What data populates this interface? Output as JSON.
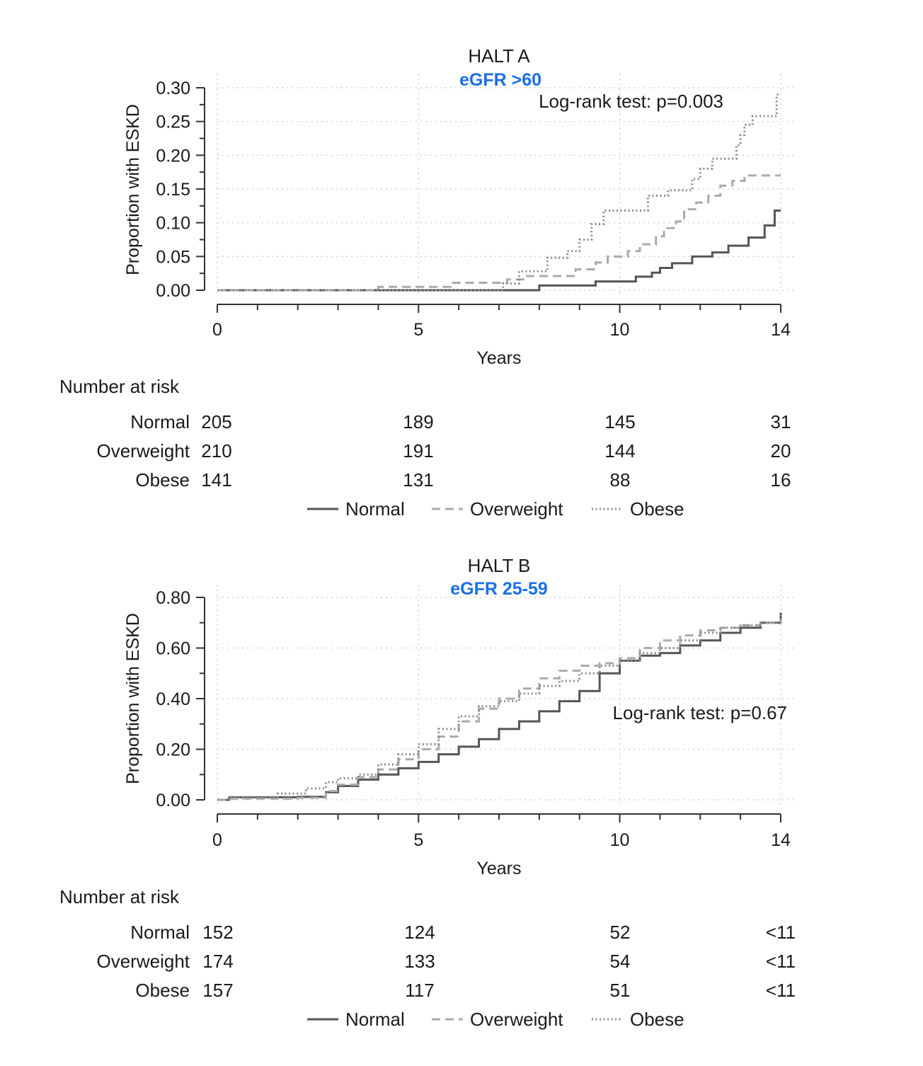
{
  "colors": {
    "subtitle": "#1a6fe8",
    "normal": "#555555",
    "overweight": "#aaaaaa",
    "obese": "#888888"
  },
  "chart_data": [
    {
      "type": "line",
      "title": "HALT A",
      "subtitle": "eGFR >60",
      "xlabel": "Years",
      "ylabel": "Proportion with ESKD",
      "xlim": [
        0,
        14
      ],
      "ylim": [
        0,
        0.3
      ],
      "xticks": [
        "0",
        "5",
        "10",
        "14"
      ],
      "xtick_values": [
        0,
        5,
        10,
        14
      ],
      "yticks": [
        "0.00",
        "0.05",
        "0.10",
        "0.15",
        "0.20",
        "0.25",
        "0.30"
      ],
      "ytick_values": [
        0,
        0.05,
        0.1,
        0.15,
        0.2,
        0.25,
        0.3
      ],
      "grid": true,
      "annotation": "Log-rank test: p=0.003",
      "annotation_position": "top-right",
      "series": [
        {
          "name": "Normal",
          "style": "solid",
          "x": [
            0,
            8.0,
            9.4,
            10.4,
            10.8,
            11.0,
            11.3,
            11.8,
            12.3,
            12.7,
            13.2,
            13.6,
            13.85,
            14.0
          ],
          "y": [
            0,
            0.007,
            0.013,
            0.02,
            0.026,
            0.033,
            0.04,
            0.05,
            0.056,
            0.066,
            0.078,
            0.096,
            0.118,
            0.118
          ]
        },
        {
          "name": "Overweight",
          "style": "dashed",
          "x": [
            0,
            4.0,
            5.8,
            7.2,
            7.7,
            8.9,
            9.4,
            9.7,
            10.2,
            10.5,
            10.9,
            11.1,
            11.4,
            11.6,
            11.9,
            12.2,
            12.5,
            12.8,
            13.1,
            14.0
          ],
          "y": [
            0,
            0.005,
            0.011,
            0.016,
            0.021,
            0.031,
            0.041,
            0.05,
            0.058,
            0.068,
            0.08,
            0.092,
            0.102,
            0.12,
            0.13,
            0.14,
            0.155,
            0.162,
            0.17,
            0.17
          ]
        },
        {
          "name": "Obese",
          "style": "dotted",
          "x": [
            0,
            7.1,
            7.5,
            8.2,
            8.7,
            9.0,
            9.3,
            9.6,
            10.7,
            11.2,
            11.8,
            12.0,
            12.3,
            12.9,
            13.0,
            13.1,
            13.3,
            13.9,
            14.0
          ],
          "y": [
            0,
            0.01,
            0.028,
            0.048,
            0.058,
            0.075,
            0.098,
            0.118,
            0.14,
            0.148,
            0.165,
            0.18,
            0.195,
            0.215,
            0.23,
            0.245,
            0.258,
            0.29,
            0.29
          ]
        }
      ],
      "risk_table": {
        "heading": "Number at risk",
        "rows": [
          {
            "label": "Normal",
            "values": [
              "205",
              "189",
              "145",
              "31"
            ]
          },
          {
            "label": "Overweight",
            "values": [
              "210",
              "191",
              "144",
              "20"
            ]
          },
          {
            "label": "Obese",
            "values": [
              "141",
              "131",
              "88",
              "16"
            ]
          }
        ]
      },
      "legend": [
        "Normal",
        "Overweight",
        "Obese"
      ],
      "legend_position": "bottom"
    },
    {
      "type": "line",
      "title": "HALT B",
      "subtitle": "eGFR 25-59",
      "xlabel": "Years",
      "ylabel": "Proportion with ESKD",
      "xlim": [
        0,
        14
      ],
      "ylim": [
        0,
        0.8
      ],
      "xticks": [
        "0",
        "5",
        "10",
        "14"
      ],
      "xtick_values": [
        0,
        5,
        10,
        14
      ],
      "yticks": [
        "0.00",
        "0.20",
        "0.40",
        "0.60",
        "0.80"
      ],
      "ytick_values": [
        0,
        0.2,
        0.4,
        0.6,
        0.8
      ],
      "grid": true,
      "annotation": "Log-rank test: p=0.67",
      "annotation_position": "middle-right",
      "series": [
        {
          "name": "Normal",
          "style": "solid",
          "x": [
            0,
            0.3,
            2.0,
            2.7,
            3.0,
            3.5,
            4.0,
            4.5,
            5.0,
            5.5,
            6.0,
            6.5,
            7.0,
            7.5,
            8.0,
            8.5,
            9.0,
            9.5,
            10.0,
            10.5,
            11.0,
            11.5,
            12.0,
            12.5,
            13.0,
            13.5,
            14.0
          ],
          "y": [
            0,
            0.01,
            0.012,
            0.03,
            0.055,
            0.08,
            0.1,
            0.125,
            0.15,
            0.18,
            0.21,
            0.24,
            0.28,
            0.31,
            0.35,
            0.39,
            0.43,
            0.5,
            0.55,
            0.57,
            0.58,
            0.61,
            0.63,
            0.66,
            0.68,
            0.7,
            0.74
          ]
        },
        {
          "name": "Overweight",
          "style": "dashed",
          "x": [
            0,
            0.3,
            2.0,
            2.7,
            3.0,
            3.5,
            4.0,
            4.5,
            5.0,
            5.5,
            6.0,
            6.5,
            7.0,
            7.5,
            8.0,
            8.5,
            9.0,
            9.5,
            10.0,
            10.5,
            11.0,
            11.5,
            12.0,
            12.5,
            13.0,
            13.5,
            14.0
          ],
          "y": [
            0,
            0.005,
            0.008,
            0.035,
            0.06,
            0.09,
            0.12,
            0.16,
            0.2,
            0.25,
            0.31,
            0.36,
            0.4,
            0.44,
            0.48,
            0.51,
            0.53,
            0.54,
            0.56,
            0.6,
            0.63,
            0.65,
            0.67,
            0.68,
            0.69,
            0.7,
            0.71
          ]
        },
        {
          "name": "Obese",
          "style": "dotted",
          "x": [
            0,
            0.3,
            1.5,
            2.2,
            2.7,
            3.0,
            3.5,
            4.0,
            4.5,
            5.0,
            5.5,
            6.0,
            6.5,
            7.0,
            7.5,
            8.0,
            8.5,
            9.0,
            9.5,
            10.0,
            10.5,
            11.0,
            11.5,
            12.0,
            12.5,
            13.0,
            13.5,
            14.0
          ],
          "y": [
            0,
            0.01,
            0.025,
            0.045,
            0.07,
            0.085,
            0.1,
            0.14,
            0.18,
            0.22,
            0.28,
            0.33,
            0.37,
            0.39,
            0.42,
            0.45,
            0.47,
            0.5,
            0.53,
            0.55,
            0.58,
            0.6,
            0.63,
            0.66,
            0.68,
            0.69,
            0.7,
            0.73
          ]
        }
      ],
      "risk_table": {
        "heading": "Number at risk",
        "rows": [
          {
            "label": "Normal",
            "values": [
              "152",
              "124",
              "52",
              "<11"
            ]
          },
          {
            "label": "Overweight",
            "values": [
              "174",
              "133",
              "54",
              "<11"
            ]
          },
          {
            "label": "Obese",
            "values": [
              "157",
              "117",
              "51",
              "<11"
            ]
          }
        ]
      },
      "legend": [
        "Normal",
        "Overweight",
        "Obese"
      ],
      "legend_position": "bottom"
    }
  ]
}
